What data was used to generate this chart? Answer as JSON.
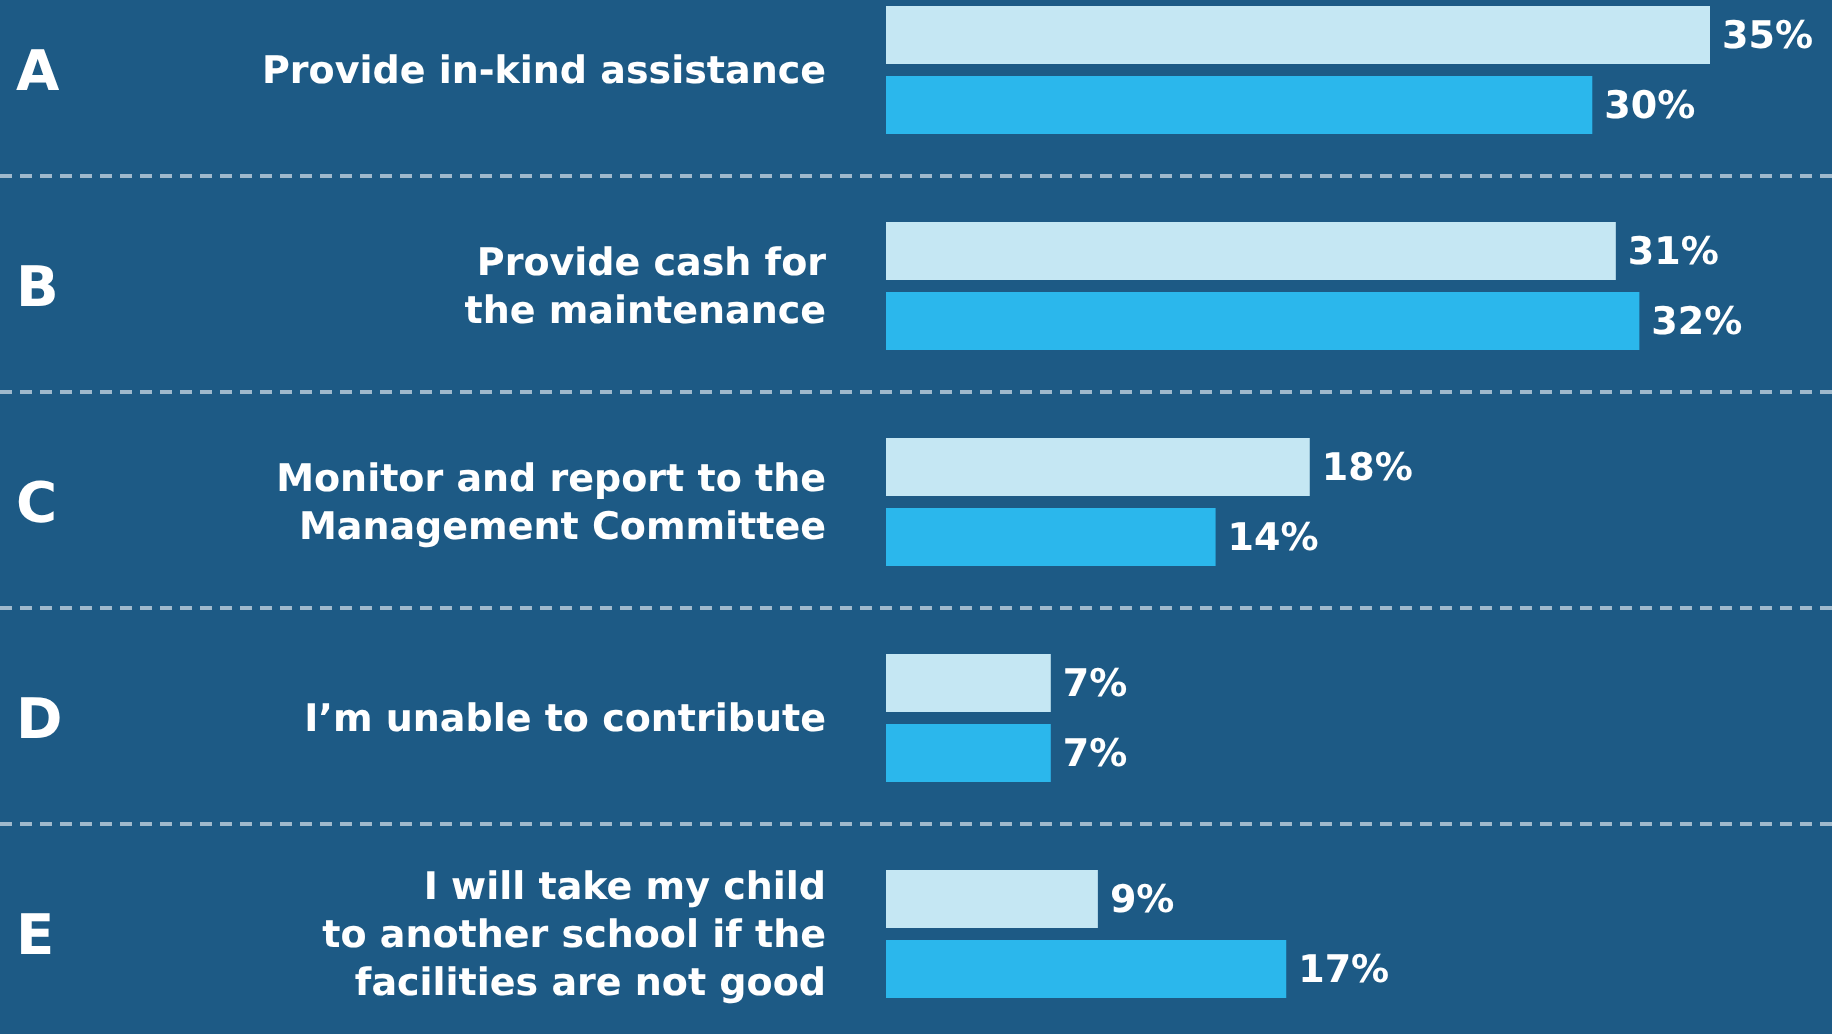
{
  "chart_data": {
    "type": "bar",
    "orientation": "horizontal",
    "categories": [
      "Provide in-kind assistance",
      "Provide cash for\nthe maintenance",
      "Monitor and report to the\nManagement Committee",
      "I’m unable to contribute",
      "I will take my child\nto another school if the\nfacilities are not good"
    ],
    "series": [
      {
        "color": "#c5e7f3",
        "values": [
          35,
          31,
          18,
          7,
          9
        ],
        "value_labels": [
          "35%",
          "31%",
          "18%",
          "7%",
          "9%"
        ]
      },
      {
        "color": "#2bb7ec",
        "values": [
          30,
          32,
          14,
          7,
          17
        ],
        "value_labels": [
          "30%",
          "32%",
          "14%",
          "7%",
          "17%"
        ]
      }
    ],
    "annotations": [
      "A",
      "B",
      "C",
      "D",
      "E"
    ],
    "xlim": [
      0,
      35
    ],
    "tick_labels": "y",
    "grid": "y"
  }
}
